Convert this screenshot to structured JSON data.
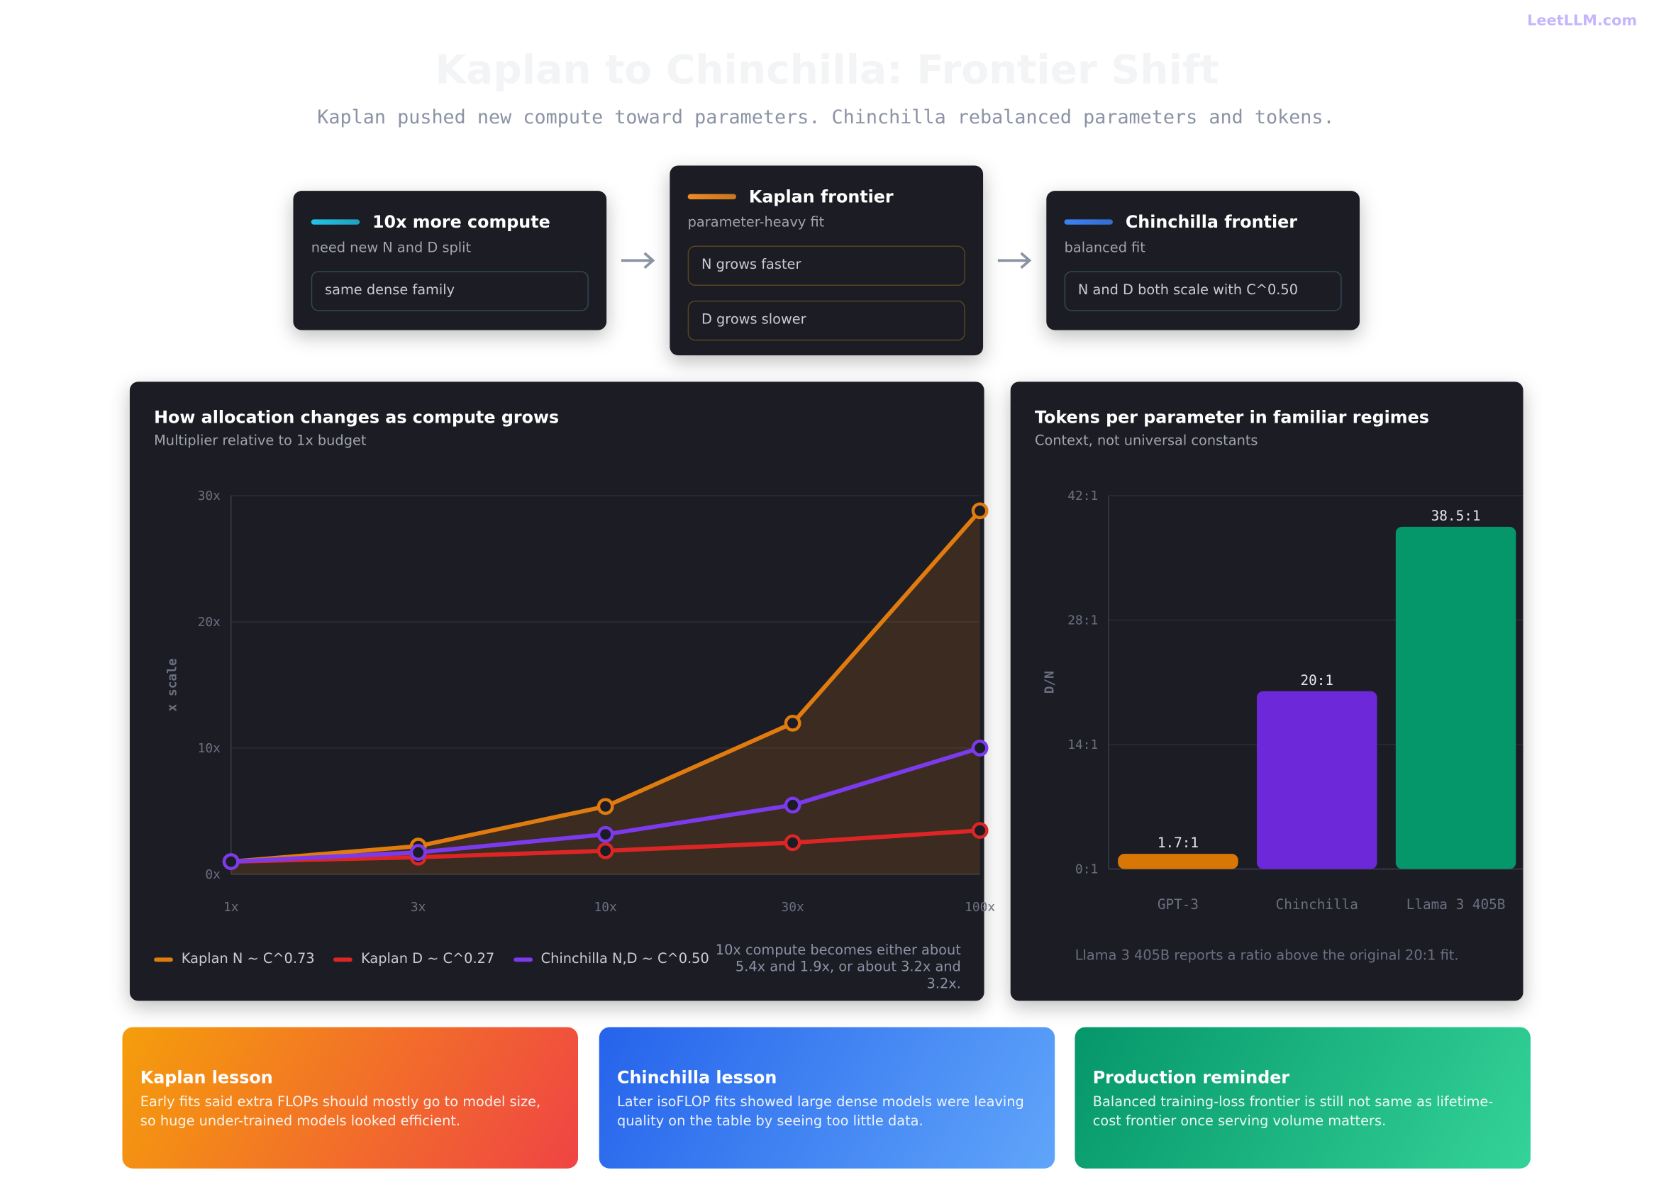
{
  "brand": "LeetLLM.com",
  "header": {
    "title": "Kaplan to Chinchilla: Frontier Shift",
    "subtitle": "Kaplan pushed new compute toward parameters. Chinchilla rebalanced parameters and tokens."
  },
  "flow": [
    {
      "title": "10x more compute",
      "subtitle": "need new N and D split",
      "items": [
        "same dense family"
      ],
      "color": "#22c3e6"
    },
    {
      "title": "Kaplan frontier",
      "subtitle": "parameter-heavy fit",
      "items": [
        "N grows faster",
        "D grows slower"
      ],
      "color": "#f08a24"
    },
    {
      "title": "Chinchilla frontier",
      "subtitle": "balanced fit",
      "items": [
        "N and D both scale with C^0.50"
      ],
      "color": "#3b82f6"
    }
  ],
  "chart_data": [
    {
      "type": "line",
      "title": "How allocation changes as compute grows",
      "subtitle": "Multiplier relative to 1x budget",
      "categories": [
        "1x",
        "3x",
        "10x",
        "30x",
        "100x"
      ],
      "ylabel": "x scale",
      "ylim": [
        0,
        30
      ],
      "yticks": [
        {
          "value": 0,
          "label": "0x"
        },
        {
          "value": 10,
          "label": "10x"
        },
        {
          "value": 20,
          "label": "20x"
        },
        {
          "value": 30,
          "label": "30x"
        }
      ],
      "grid": true,
      "series": [
        {
          "name": "Kaplan N ~ C^0.73",
          "color": "#e07b0f",
          "values": [
            1,
            2.23,
            5.37,
            11.97,
            28.8
          ],
          "area": true
        },
        {
          "name": "Kaplan D ~ C^0.27",
          "color": "#dc2626",
          "values": [
            1,
            1.35,
            1.86,
            2.5,
            3.47
          ]
        },
        {
          "name": "Chinchilla N,D ~ C^0.50",
          "color": "#7c3aed",
          "values": [
            1,
            1.73,
            3.16,
            5.48,
            10
          ]
        }
      ],
      "note": "10x compute becomes either about 5.4x and 1.9x, or about 3.2x and 3.2x."
    },
    {
      "type": "bar",
      "title": "Tokens per parameter in familiar regimes",
      "subtitle": "Context, not universal constants",
      "categories": [
        "GPT-3",
        "Chinchilla",
        "Llama 3 405B"
      ],
      "values": [
        1.7,
        20,
        38.5
      ],
      "value_labels": [
        "1.7:1",
        "20:1",
        "38.5:1"
      ],
      "colors": [
        "#d97706",
        "#6d28d9",
        "#059669"
      ],
      "ylabel": "D/N",
      "ylim": [
        0,
        42
      ],
      "yticks": [
        {
          "value": 0,
          "label": "0:1"
        },
        {
          "value": 14,
          "label": "14:1"
        },
        {
          "value": 28,
          "label": "28:1"
        },
        {
          "value": 42,
          "label": "42:1"
        }
      ],
      "grid": true,
      "note": "Llama 3 405B reports a ratio above the original 20:1 fit."
    }
  ],
  "lessons": [
    {
      "title": "Kaplan lesson",
      "text": "Early fits said extra FLOPs should mostly go to model size, so huge under-trained models looked efficient."
    },
    {
      "title": "Chinchilla lesson",
      "text": "Later isoFLOP fits showed large dense models were leaving quality on the table by seeing too little data."
    },
    {
      "title": "Production reminder",
      "text": "Balanced training-loss frontier is still not same as lifetime-cost frontier once serving volume matters."
    }
  ]
}
